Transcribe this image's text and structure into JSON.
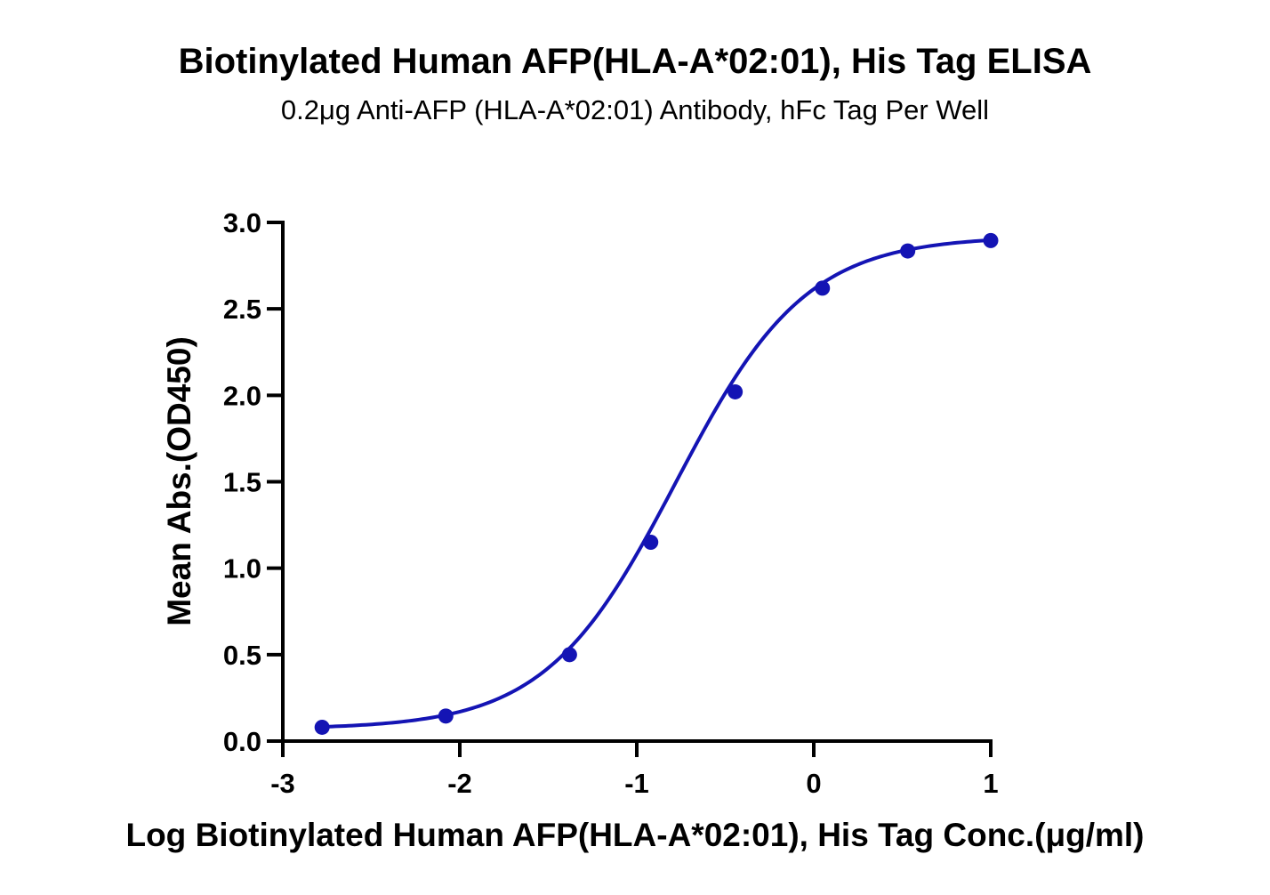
{
  "chart_data": {
    "type": "scatter",
    "title": "Biotinylated Human AFP(HLA-A*02:01), His Tag ELISA",
    "subtitle": "0.2μg Anti-AFP (HLA-A*02:01) Antibody, hFc Tag Per Well",
    "xlabel": "Log Biotinylated Human AFP(HLA-A*02:01), His Tag Conc.(μg/ml)",
    "ylabel": "Mean Abs.(OD450)",
    "xlim": [
      -3,
      1
    ],
    "ylim": [
      0,
      3.0
    ],
    "x_ticks": [
      -3,
      -2,
      -1,
      0,
      1
    ],
    "x_tick_labels": [
      "-3",
      "-2",
      "-1",
      "0",
      "1"
    ],
    "y_ticks": [
      0,
      0.5,
      1.0,
      1.5,
      2.0,
      2.5,
      3.0
    ],
    "y_tick_labels": [
      "0.0",
      "0.5",
      "1.0",
      "1.5",
      "2.0",
      "2.5",
      "3.0"
    ],
    "grid": false,
    "legend": "none",
    "series": [
      {
        "color": "#1414b4",
        "x": [
          -2.778,
          -2.079,
          -1.38,
          -0.921,
          -0.444,
          0.049,
          0.531,
          1.0
        ],
        "y": [
          0.08,
          0.145,
          0.5,
          1.15,
          2.02,
          2.62,
          2.835,
          2.895
        ],
        "fit": "four-parameter logistic"
      }
    ]
  }
}
